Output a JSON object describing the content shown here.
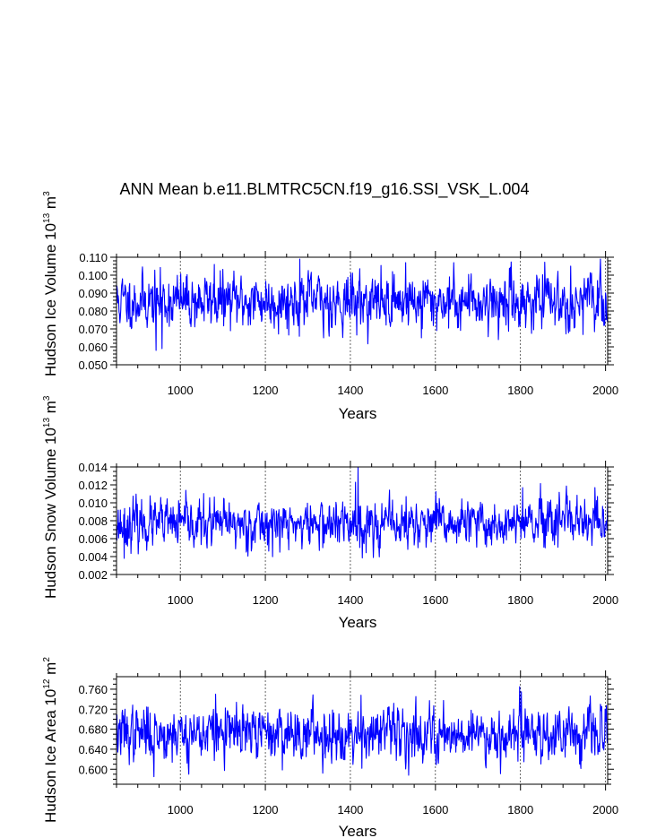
{
  "title": "ANN Mean b.e11.BLMTRC5CN.f19_g16.SSI_VSK_L.004",
  "chart_data": [
    {
      "type": "line",
      "id": "ice-volume",
      "title": "",
      "xlabel": "Years",
      "ylabel": {
        "base": "Hudson Ice Volume 10",
        "exp1": "13",
        "unit": " m",
        "exp2": "3"
      },
      "xlim": [
        850,
        2005
      ],
      "ylim": [
        0.05,
        0.11
      ],
      "xticks": [
        1000,
        1200,
        1400,
        1600,
        1800,
        2000
      ],
      "yticks": [
        0.05,
        0.06,
        0.07,
        0.08,
        0.09,
        0.1,
        0.11
      ],
      "yticklabels": [
        "0.050",
        "0.060",
        "0.070",
        "0.080",
        "0.090",
        "0.100",
        "0.110"
      ],
      "yminor": 0.002,
      "series": [
        {
          "name": "Hudson Ice Volume",
          "color": "#0000ff",
          "mean": 0.0855,
          "std": 0.0075,
          "lo": 0.058,
          "hi": 0.109,
          "seed": 11,
          "x_start": 850,
          "x_end": 2005,
          "spikes": [
            [
              943,
              0.058
            ],
            [
              957,
              0.059
            ],
            [
              1281,
              0.109
            ],
            [
              1080,
              0.106
            ],
            [
              1530,
              0.107
            ],
            [
              1748,
              0.064
            ],
            [
              1337,
              0.065
            ],
            [
              1567,
              0.065
            ]
          ]
        }
      ]
    },
    {
      "type": "line",
      "id": "snow-volume",
      "title": "",
      "xlabel": "Years",
      "ylabel": {
        "base": "Hudson Snow Volume 10",
        "exp1": "13",
        "unit": " m",
        "exp2": "3"
      },
      "xlim": [
        850,
        2005
      ],
      "ylim": [
        0.002,
        0.014
      ],
      "xticks": [
        1000,
        1200,
        1400,
        1600,
        1800,
        2000
      ],
      "yticks": [
        0.002,
        0.004,
        0.006,
        0.008,
        0.01,
        0.012,
        0.014
      ],
      "yticklabels": [
        "0.002",
        "0.004",
        "0.006",
        "0.008",
        "0.010",
        "0.012",
        "0.014"
      ],
      "yminor": 0.0005,
      "series": [
        {
          "name": "Hudson Snow Volume",
          "color": "#0000ff",
          "mean": 0.0076,
          "std": 0.0013,
          "lo": 0.0038,
          "hi": 0.014,
          "seed": 23,
          "x_start": 850,
          "x_end": 2005,
          "spikes": [
            [
              1418,
              0.014
            ],
            [
              1412,
              0.0123
            ],
            [
              1422,
              0.005
            ],
            [
              868,
              0.0038
            ],
            [
              1805,
              0.0117
            ],
            [
              1975,
              0.0117
            ]
          ]
        }
      ]
    },
    {
      "type": "line",
      "id": "ice-area",
      "title": "",
      "xlabel": "Years",
      "ylabel": {
        "base": "Hudson Ice Area 10",
        "exp1": "12",
        "unit": " m",
        "exp2": "2"
      },
      "xlim": [
        850,
        2005
      ],
      "ylim": [
        0.57,
        0.785
      ],
      "xticks": [
        1000,
        1200,
        1400,
        1600,
        1800,
        2000
      ],
      "yticks": [
        0.6,
        0.64,
        0.68,
        0.72,
        0.76
      ],
      "yticklabels": [
        "0.600",
        "0.640",
        "0.680",
        "0.720",
        "0.760"
      ],
      "yminor": 0.01,
      "series": [
        {
          "name": "Hudson Ice Area",
          "color": "#0000ff",
          "mean": 0.672,
          "std": 0.026,
          "lo": 0.583,
          "hi": 0.765,
          "seed": 37,
          "x_start": 850,
          "x_end": 2005,
          "spikes": [
            [
              1798,
              0.765
            ],
            [
              1802,
              0.755
            ],
            [
              1083,
              0.75
            ],
            [
              1425,
              0.748
            ],
            [
              938,
              0.585
            ],
            [
              1335,
              0.592
            ],
            [
              1020,
              0.59
            ]
          ]
        }
      ]
    }
  ]
}
